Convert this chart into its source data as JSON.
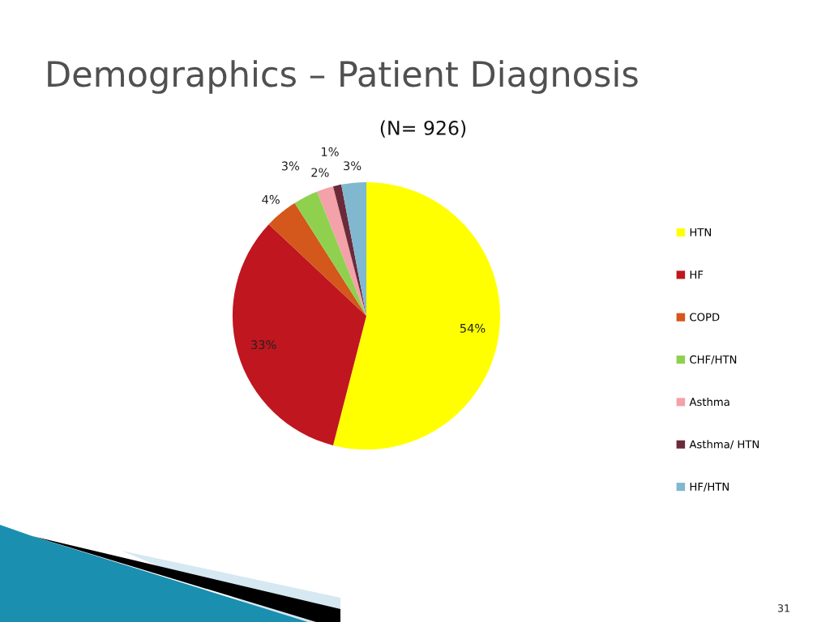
{
  "chart_data": {
    "type": "pie",
    "title": "Demographics – Patient Diagnosis",
    "subtitle": "(N= 926)",
    "categories": [
      "HTN",
      "HF",
      "COPD",
      "CHF/HTN",
      "Asthma",
      "Asthma/ HTN",
      "HF/HTN"
    ],
    "values": [
      54,
      33,
      4,
      3,
      2,
      1,
      3
    ],
    "colors": [
      "#ffff00",
      "#c0161f",
      "#d4571b",
      "#8fd14f",
      "#f2a2a8",
      "#6b2a3a",
      "#80b8cf"
    ],
    "value_labels": [
      "54%",
      "33%",
      "4%",
      "3%",
      "2%",
      "1%",
      "3%"
    ],
    "legend": "right",
    "annotations": [
      "31"
    ]
  }
}
